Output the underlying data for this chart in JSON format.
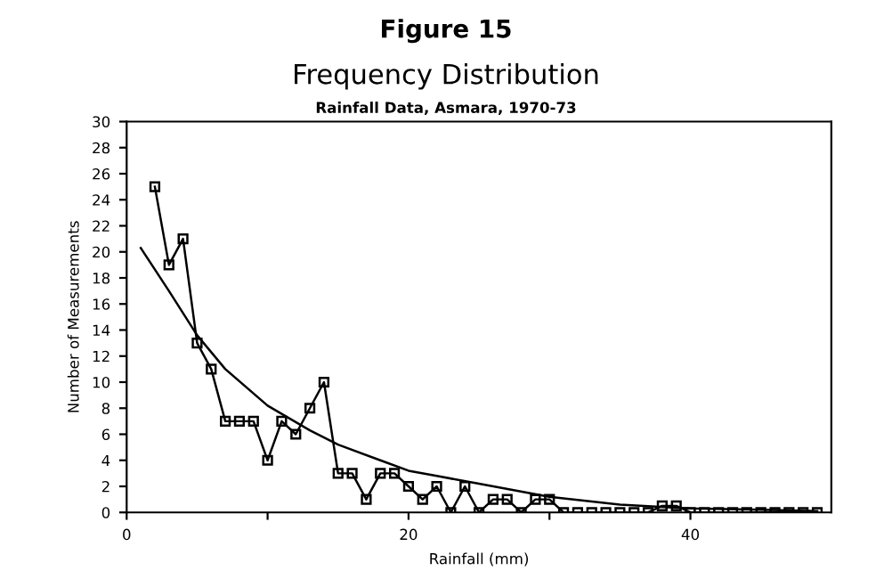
{
  "chart_data": {
    "type": "line",
    "title": "Frequency Distribution",
    "subtitle": "Rainfall Data, Asmara, 1970-73",
    "annotations": [
      "Figure 15"
    ],
    "xlabel": "Rainfall (mm)",
    "ylabel": "Number of Measurements",
    "xlim": [
      0,
      50
    ],
    "xticks": [
      0,
      {
        "value": 10,
        "label": null
      },
      20,
      {
        "value": 30,
        "label": null
      },
      40
    ],
    "ylim": [
      0,
      30
    ],
    "yticks": [
      0,
      2,
      4,
      6,
      8,
      10,
      12,
      14,
      16,
      18,
      20,
      22,
      24,
      26,
      28,
      30
    ],
    "series": [
      {
        "color": "#000000",
        "marker": "square",
        "x": [
          2,
          3,
          4,
          5,
          6,
          7,
          8,
          9,
          10,
          11,
          12,
          13,
          14,
          15,
          16,
          17,
          18,
          19,
          20,
          21,
          22,
          23,
          24,
          25,
          26,
          27,
          28,
          29,
          30,
          31,
          32,
          33,
          34,
          35,
          36,
          37,
          38,
          39,
          40,
          41,
          42,
          43,
          44,
          45,
          46,
          47,
          48,
          49
        ],
        "values": [
          25,
          19,
          21,
          13,
          11,
          7,
          7,
          7,
          4,
          7,
          6,
          8,
          10,
          3,
          3,
          1,
          3,
          3,
          2,
          1,
          2,
          0,
          2,
          0,
          1,
          1,
          0,
          1,
          1,
          0,
          0,
          0,
          0,
          0,
          0,
          0,
          0.5,
          0.5,
          0,
          0,
          0,
          0,
          0,
          0,
          0,
          0,
          0,
          0
        ]
      },
      {
        "color": "#000000",
        "marker": "none",
        "x": [
          1,
          3,
          5,
          7,
          10,
          13,
          15,
          18,
          20,
          22,
          25,
          30,
          35,
          40,
          45,
          49
        ],
        "values": [
          20.3,
          17,
          13.6,
          11,
          8.2,
          6.3,
          5.2,
          4,
          3.2,
          2.8,
          2.2,
          1.2,
          0.6,
          0.3,
          0.2,
          0.1
        ]
      }
    ]
  }
}
